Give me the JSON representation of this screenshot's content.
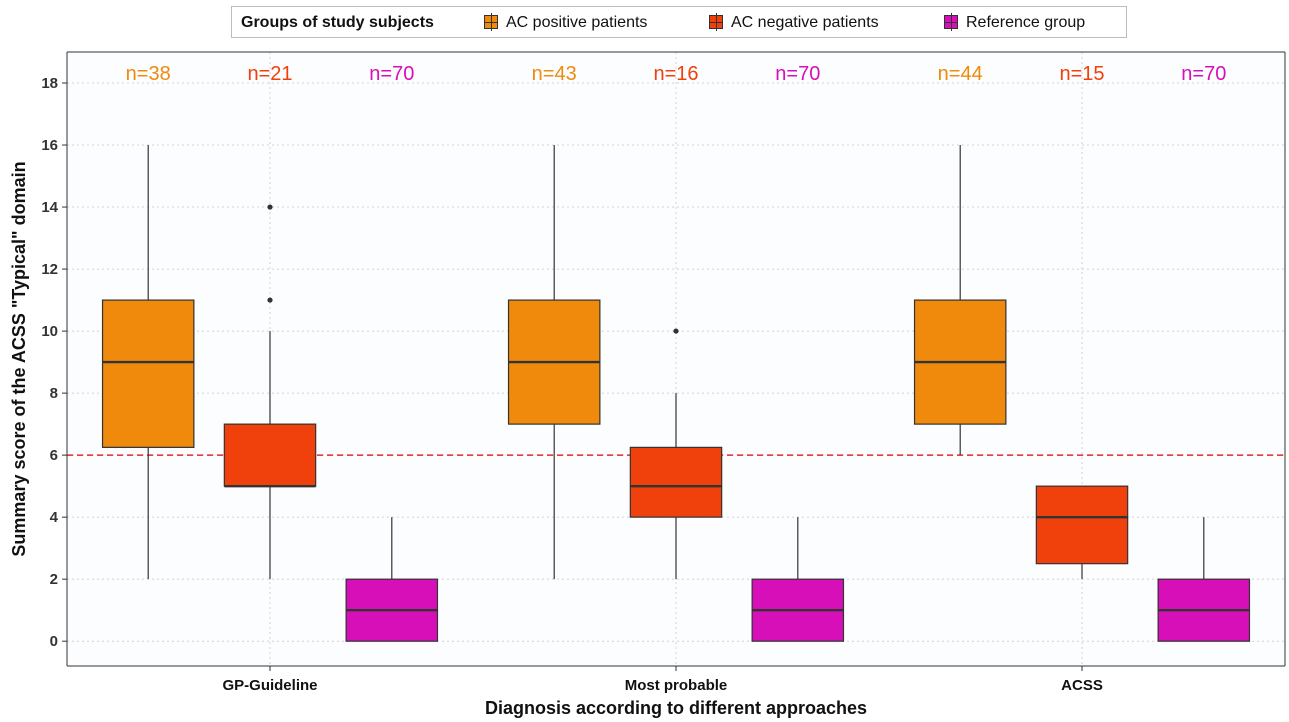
{
  "chart_data": {
    "type": "box",
    "legend": {
      "title": "Groups of study subjects",
      "placement": "top",
      "entries": [
        {
          "name": "AC positive patients",
          "color": "#EF8A0C"
        },
        {
          "name": "AC negative patients",
          "color": "#F0400C"
        },
        {
          "name": "Reference group",
          "color": "#D70FB8"
        }
      ]
    },
    "xlabel": "Diagnosis according to different approaches",
    "ylabel": "Summary score of the ACSS \"Typical\" domain",
    "ylim": [
      -0.8,
      19.0
    ],
    "yticks": [
      0,
      2,
      4,
      6,
      8,
      10,
      12,
      14,
      16,
      18
    ],
    "grid": true,
    "reference_line": {
      "y": 6,
      "color": "#E8262A",
      "style": "dashed"
    },
    "categories": [
      "GP-Guideline",
      "Most probable",
      "ACSS"
    ],
    "series": [
      {
        "name": "AC positive patients",
        "color": "#EF8A0C",
        "boxes": [
          {
            "n_label": "n=38",
            "whisker_low": 2,
            "q1": 6.25,
            "median": 9,
            "q3": 11,
            "whisker_high": 16,
            "outliers": []
          },
          {
            "n_label": "n=43",
            "whisker_low": 2,
            "q1": 7,
            "median": 9,
            "q3": 11,
            "whisker_high": 16,
            "outliers": []
          },
          {
            "n_label": "n=44",
            "whisker_low": 6,
            "q1": 7,
            "median": 9,
            "q3": 11,
            "whisker_high": 16,
            "outliers": []
          }
        ]
      },
      {
        "name": "AC negative patients",
        "color": "#F0400C",
        "boxes": [
          {
            "n_label": "n=21",
            "whisker_low": 2,
            "q1": 5,
            "median": 5,
            "q3": 7,
            "whisker_high": 10,
            "outliers": [
              11,
              14
            ]
          },
          {
            "n_label": "n=16",
            "whisker_low": 2,
            "q1": 4,
            "median": 5,
            "q3": 6.25,
            "whisker_high": 8,
            "outliers": [
              10
            ]
          },
          {
            "n_label": "n=15",
            "whisker_low": 2,
            "q1": 2.5,
            "median": 4,
            "q3": 5,
            "whisker_high": 5,
            "outliers": []
          }
        ]
      },
      {
        "name": "Reference group",
        "color": "#D70FB8",
        "boxes": [
          {
            "n_label": "n=70",
            "whisker_low": 0,
            "q1": 0,
            "median": 1,
            "q3": 2,
            "whisker_high": 4,
            "outliers": []
          },
          {
            "n_label": "n=70",
            "whisker_low": 0,
            "q1": 0,
            "median": 1,
            "q3": 2,
            "whisker_high": 4,
            "outliers": []
          },
          {
            "n_label": "n=70",
            "whisker_low": 0,
            "q1": 0,
            "median": 1,
            "q3": 2,
            "whisker_high": 4,
            "outliers": []
          }
        ]
      }
    ]
  }
}
